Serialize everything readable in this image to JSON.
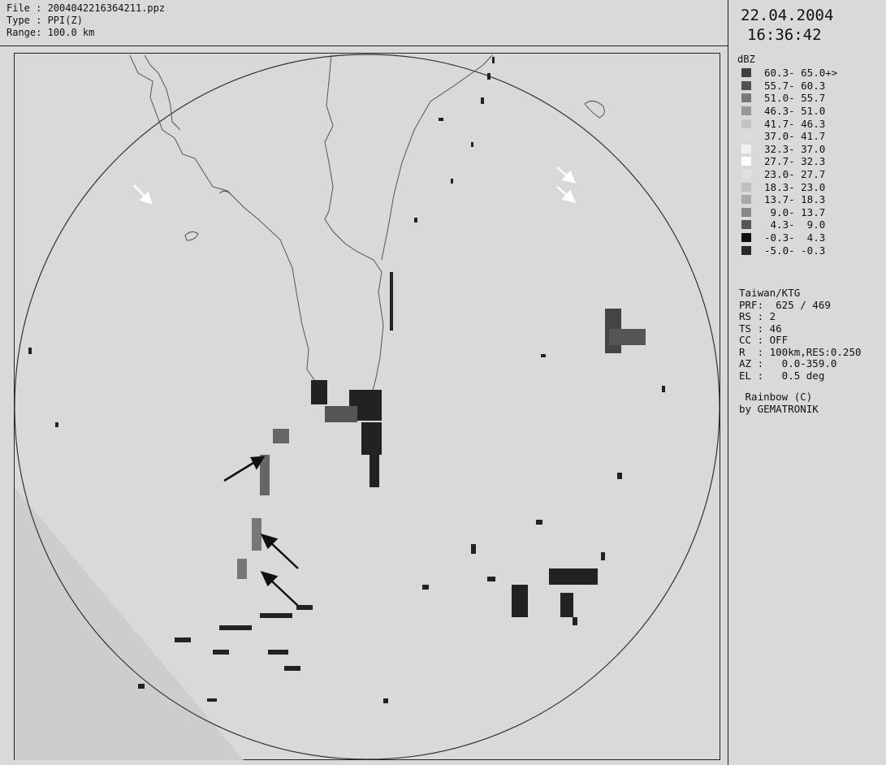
{
  "header": {
    "file_line": "File : 2004042216364211.ppz",
    "type_line": "Type : PPI(Z)",
    "range_line": "Range: 100.0 km"
  },
  "timestamp": {
    "date": "22.04.2004",
    "time": "16:36:42"
  },
  "legend": {
    "unit": "dBZ",
    "rows": [
      {
        "label": "60.3- 65.0+>",
        "color": "#404040"
      },
      {
        "label": "55.7- 60.3",
        "color": "#505050"
      },
      {
        "label": "51.0- 55.7",
        "color": "#787878"
      },
      {
        "label": "46.3- 51.0",
        "color": "#989898"
      },
      {
        "label": "41.7- 46.3",
        "color": "#c4c4c4"
      },
      {
        "label": "37.0- 41.7",
        "color": "#dcdcdc"
      },
      {
        "label": "32.3- 37.0",
        "color": "#f2f2f2"
      },
      {
        "label": "27.7- 32.3",
        "color": "#ffffff"
      },
      {
        "label": "23.0- 27.7",
        "color": "#e0e0e0"
      },
      {
        "label": "18.3- 23.0",
        "color": "#c0c0c0"
      },
      {
        "label": "13.7- 18.3",
        "color": "#a8a8a8"
      },
      {
        "label": " 9.0- 13.7",
        "color": "#888888"
      },
      {
        "label": " 4.3-  9.0",
        "color": "#555555"
      },
      {
        "label": "-0.3-  4.3",
        "color": "#101010"
      },
      {
        "label": "-5.0- -0.3",
        "color": "#282828"
      }
    ]
  },
  "info": {
    "station": "Taiwan/KTG",
    "prf": "PRF:  625 / 469",
    "rs": "RS : 2",
    "ts": "TS : 46",
    "cc": "CC : OFF",
    "r": "R  : 100km,RES:0.250",
    "az": "AZ :   0.0-359.0",
    "el": "EL :   0.5 deg"
  },
  "credit": {
    "line1": " Rainbow (C)",
    "line2": "by GEMATRONIK"
  },
  "colors": {
    "background": "#d9d9d9",
    "lines": "#222222",
    "coast": "#555555"
  }
}
